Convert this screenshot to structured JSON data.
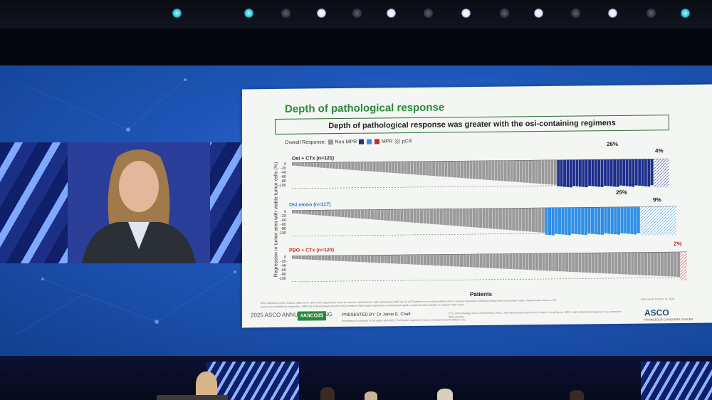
{
  "slide": {
    "title": "Depth of pathological response",
    "subtitle": "Depth of pathological response was greater with the osi-containing regimens",
    "legend_prefix": "Overall Response:",
    "legend_nonmpr": "Non-MPR",
    "legend_mpr": "MPR",
    "legend_pcr": "pCR",
    "yaxis_label": "Regression in tumor area with viable tumor cells (%)",
    "xaxis_label": "Patients",
    "ticks": [
      "0",
      "-20",
      "-40",
      "-60",
      "-80",
      "-100"
    ],
    "footnote": "MPR defined as ≤10% residual viable tumor cells in the lung primary tumor at resection; dotted line at −90% denotes the MPR cut-off. pCR defined as no residual viable tumor in surgical specimens including primary tumors and lymph nodes. Patients had to have an R0 result to be classified as responders. MPR and pCR assessed using the IASLC method. Pathological regression is summarized based on patients with evaluable % residual viable tumor.",
    "footer_right": "CTx, chemotherapy; mono, monotherapy; IASLC, International Association for the Study of Lung Cancer; MPR, major pathological response; osi, osimertinib; PBO, placebo",
    "cutoff": "Data cut-off: October 15, 2024.",
    "meeting": "2025 ASCO ANNUAL MEETING",
    "hashtag": "#ASCO25",
    "presenter": "PRESENTED BY: Dr Jamie E. Chaft",
    "property": "Presentation is property of the author and ASCO. Permission required for reuse; contact permissions@asco.org.",
    "asco_logo": "ASCO",
    "asco_tagline": "KNOWLEDGE CONQUERS CANCER",
    "panels": [
      {
        "label": "Osi + CTx (n=121)",
        "mpr_pct": "26%",
        "pcr_pct": "4%",
        "color": "#1d2f8c"
      },
      {
        "label": "Osi mono (n=117)",
        "mpr_pct": "25%",
        "pcr_pct": "9%",
        "color": "#2f8ee6"
      },
      {
        "label": "PBO + CTx (n=120)",
        "mpr_pct": "",
        "pcr_pct": "2%",
        "color": "#c62828"
      }
    ]
  },
  "colors": {
    "nonmpr": "#9a9a9a",
    "title_green": "#2a8a3a"
  }
}
